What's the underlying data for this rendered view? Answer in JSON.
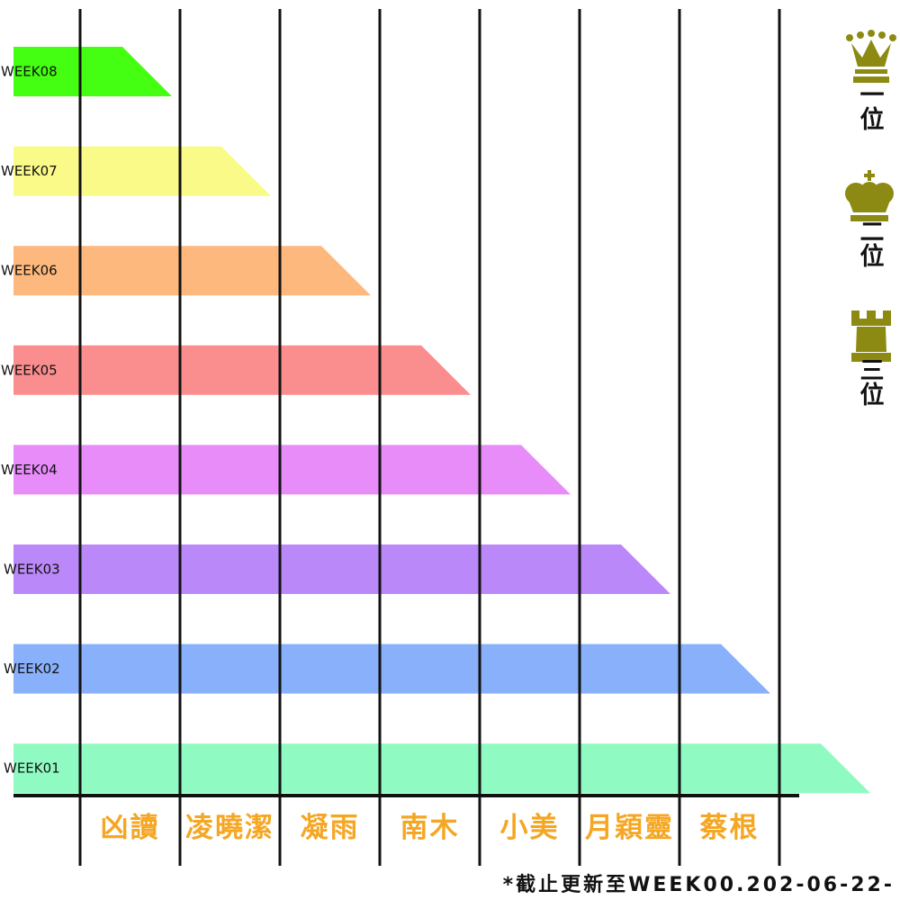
{
  "chart_data": {
    "type": "bar",
    "categories": [
      "WEEK08",
      "WEEK07",
      "WEEK06",
      "WEEK05",
      "WEEK04",
      "WEEK03",
      "WEEK02",
      "WEEK01"
    ],
    "values": [
      1,
      2,
      3,
      4,
      5,
      6,
      7,
      8
    ],
    "bar_colors": [
      "#44ff11",
      "#fafa88",
      "#fdb97d",
      "#fa8e8e",
      "#e88cfa",
      "#bb88fa",
      "#89b0fa",
      "#8ffac2"
    ],
    "columns": [
      "凶讀",
      "凌曉潔",
      "凝雨",
      "南木",
      "小美",
      "月穎靈",
      "蔡根"
    ],
    "xlim": [
      0,
      8
    ],
    "grid": true
  },
  "legend": {
    "items": [
      {
        "icon": "queen-crown-icon",
        "label": "一位",
        "color": "#8c8a12"
      },
      {
        "icon": "king-crown-icon",
        "label": "二位",
        "color": "#8c8a12"
      },
      {
        "icon": "rook-tower-icon",
        "label": "三位",
        "color": "#8c8a12"
      }
    ]
  },
  "footnote": "*截止更新至WEEK00.202-06-22-",
  "colors": {
    "name_label": "#f5a623",
    "axis": "#111111",
    "background": "#ffffff"
  }
}
